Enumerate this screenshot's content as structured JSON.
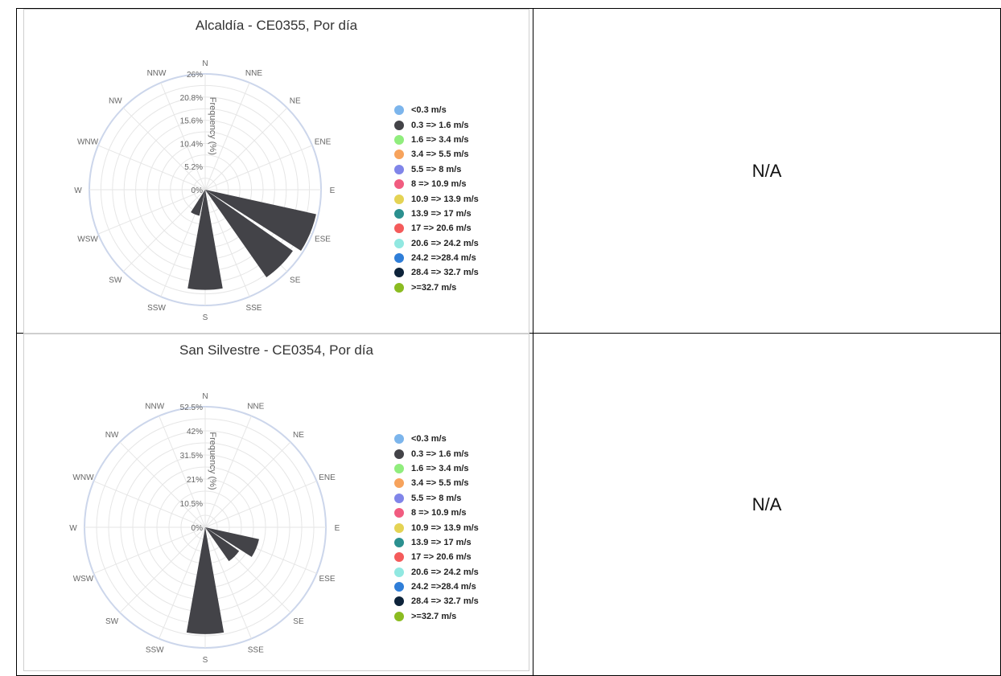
{
  "rows": [
    {
      "na_text": "N/A"
    },
    {
      "na_text": "N/A"
    }
  ],
  "legend": [
    {
      "label": "<0.3 m/s",
      "color": "#7cb5ec"
    },
    {
      "label": "0.3 => 1.6 m/s",
      "color": "#434348"
    },
    {
      "label": "1.6 => 3.4 m/s",
      "color": "#90ed7d"
    },
    {
      "label": "3.4 => 5.5 m/s",
      "color": "#f7a35c"
    },
    {
      "label": "5.5 => 8 m/s",
      "color": "#8085e9"
    },
    {
      "label": "8 => 10.9 m/s",
      "color": "#f15c80"
    },
    {
      "label": "10.9 => 13.9 m/s",
      "color": "#e4d354"
    },
    {
      "label": "13.9 => 17 m/s",
      "color": "#2b908f"
    },
    {
      "label": "17 => 20.6 m/s",
      "color": "#f45b5b"
    },
    {
      "label": "20.6 => 24.2 m/s",
      "color": "#91e8e1"
    },
    {
      "label": "24.2 =>28.4 m/s",
      "color": "#2f7ed8"
    },
    {
      "label": "28.4 => 32.7 m/s",
      "color": "#0d233a"
    },
    {
      "label": ">=32.7 m/s",
      "color": "#8bbc21"
    }
  ],
  "chart_data": [
    {
      "type": "windrose",
      "title": "Alcaldía - CE0355, Por día",
      "radial_axis_label": "Frequency (%)",
      "radial_ticks": [
        "0%",
        "5.2%",
        "10.4%",
        "15.6%",
        "20.8%",
        "26%"
      ],
      "radial_max": 26,
      "directions": [
        "N",
        "NNE",
        "NE",
        "ENE",
        "E",
        "ESE",
        "SE",
        "SSE",
        "S",
        "SSW",
        "SW",
        "WSW",
        "W",
        "WNW",
        "NW",
        "NNW"
      ],
      "series": [
        {
          "name": "0.3 => 1.6 m/s",
          "color": "#434348",
          "values": [
            0,
            0,
            0,
            0,
            0,
            25.5,
            24,
            0,
            22.5,
            6,
            0,
            0,
            0,
            0,
            0,
            0
          ]
        }
      ]
    },
    {
      "type": "windrose",
      "title": "San Silvestre - CE0354, Por día",
      "radial_axis_label": "Frequency (%)",
      "radial_ticks": [
        "0%",
        "10.5%",
        "21%",
        "31.5%",
        "42%",
        "52.5%"
      ],
      "radial_max": 52.5,
      "directions": [
        "N",
        "NNE",
        "NE",
        "ENE",
        "E",
        "ESE",
        "SE",
        "SSE",
        "S",
        "SSW",
        "SW",
        "WSW",
        "W",
        "WNW",
        "NW",
        "NNW"
      ],
      "series": [
        {
          "name": "0.3 => 1.6 m/s",
          "color": "#434348",
          "values": [
            0,
            0,
            0,
            0,
            0,
            24,
            18,
            0,
            46.5,
            0,
            0,
            0,
            0,
            0,
            0,
            0
          ]
        }
      ]
    }
  ]
}
